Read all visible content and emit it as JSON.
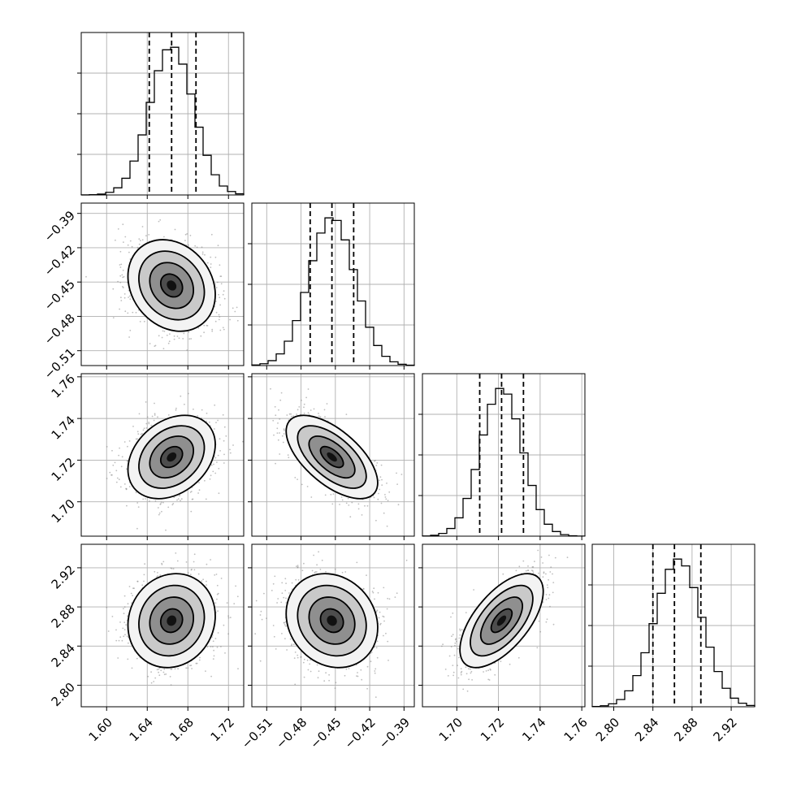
{
  "chart_data": {
    "type": "corner",
    "parameters": [
      {
        "mean": 1.664,
        "sd": 0.0215,
        "ticks": [
          1.6,
          1.64,
          1.68,
          1.72
        ],
        "tick_labels": [
          "1.60",
          "1.64",
          "1.68",
          "1.72"
        ],
        "range": [
          1.575,
          1.735
        ],
        "quantiles": [
          1.642,
          1.664,
          1.688
        ]
      },
      {
        "mean": -0.453,
        "sd": 0.02,
        "ticks": [
          -0.51,
          -0.48,
          -0.45,
          -0.42,
          -0.39
        ],
        "tick_labels": [
          "−0.51",
          "−0.48",
          "−0.45",
          "−0.42",
          "−0.39"
        ],
        "range": [
          -0.523,
          -0.381
        ],
        "quantiles": [
          -0.472,
          -0.453,
          -0.434
        ]
      },
      {
        "mean": 1.7215,
        "sd": 0.01,
        "ticks": [
          1.7,
          1.72,
          1.74,
          1.76
        ],
        "tick_labels": [
          "1.70",
          "1.72",
          "1.74",
          "1.76"
        ],
        "range": [
          1.6835,
          1.7615
        ],
        "quantiles": [
          1.711,
          1.7215,
          1.732
        ]
      },
      {
        "mean": 2.866,
        "sd": 0.024,
        "ticks": [
          2.8,
          2.84,
          2.88,
          2.92
        ],
        "tick_labels": [
          "2.80",
          "2.84",
          "2.88",
          "2.92"
        ],
        "range": [
          2.778,
          2.944
        ],
        "quantiles": [
          2.84,
          2.862,
          2.889
        ]
      }
    ],
    "correlations": [
      [
        1.0,
        -0.2,
        0.3,
        0.1
      ],
      [
        -0.2,
        1.0,
        -0.62,
        -0.15
      ],
      [
        0.3,
        -0.62,
        1.0,
        0.62
      ],
      [
        0.1,
        -0.15,
        0.62,
        1.0
      ]
    ],
    "histogram_bins": 20,
    "contour_levels_sigma": [
      0.5,
      1.0,
      1.5,
      2.0
    ],
    "grid": true
  }
}
